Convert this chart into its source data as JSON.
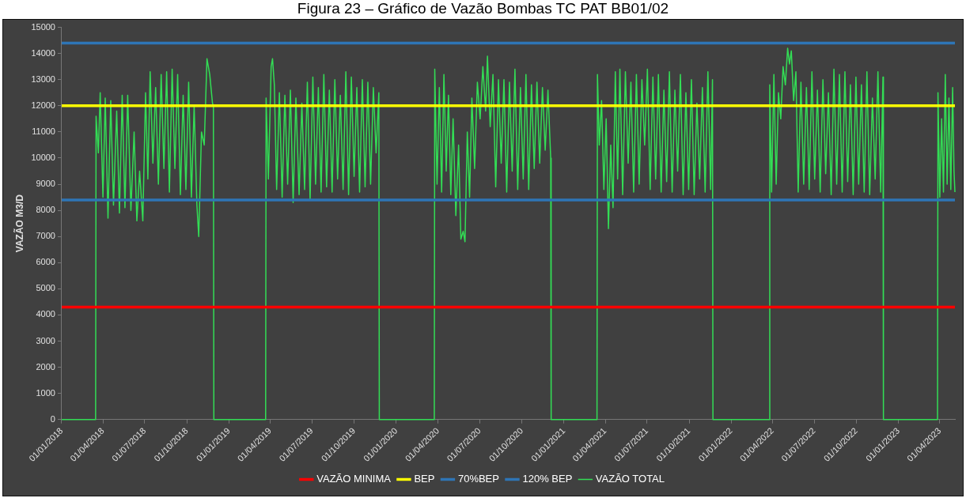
{
  "chart_data": {
    "type": "line",
    "title": "Figura 23 – Gráfico de Vazão Bombas TC PAT BB01/02",
    "ylabel": "VAZÃO M3/D",
    "xlim": [
      "2018-01-01",
      "2023-05-04"
    ],
    "xticks": [
      {
        "value": "2018-01-01",
        "label": "01/01/2018"
      },
      {
        "value": "2018-04-01",
        "label": "01/04/2018"
      },
      {
        "value": "2018-07-01",
        "label": "01/07/2018"
      },
      {
        "value": "2018-10-01",
        "label": "01/10/2018"
      },
      {
        "value": "2019-01-01",
        "label": "01/01/2019"
      },
      {
        "value": "2019-04-01",
        "label": "01/04/2019"
      },
      {
        "value": "2019-07-01",
        "label": "01/07/2019"
      },
      {
        "value": "2019-10-01",
        "label": "01/10/2019"
      },
      {
        "value": "2020-01-01",
        "label": "01/01/2020"
      },
      {
        "value": "2020-04-01",
        "label": "01/04/2020"
      },
      {
        "value": "2020-07-01",
        "label": "01/07/2020"
      },
      {
        "value": "2020-10-01",
        "label": "01/10/2020"
      },
      {
        "value": "2021-01-01",
        "label": "01/01/2021"
      },
      {
        "value": "2021-04-01",
        "label": "01/04/2021"
      },
      {
        "value": "2021-07-01",
        "label": "01/07/2021"
      },
      {
        "value": "2021-10-01",
        "label": "01/10/2021"
      },
      {
        "value": "2022-01-01",
        "label": "01/01/2022"
      },
      {
        "value": "2022-04-01",
        "label": "01/04/2022"
      },
      {
        "value": "2022-07-01",
        "label": "01/07/2022"
      },
      {
        "value": "2022-10-01",
        "label": "01/10/2022"
      },
      {
        "value": "2023-01-01",
        "label": "01/01/2023"
      },
      {
        "value": "2023-04-01",
        "label": "01/04/2023"
      }
    ],
    "ylim": [
      0,
      15000
    ],
    "yticks": [
      0,
      1000,
      2000,
      3000,
      4000,
      5000,
      6000,
      7000,
      8000,
      9000,
      10000,
      11000,
      12000,
      13000,
      14000,
      15000
    ],
    "legend": "bottom",
    "marker": "none",
    "line_style": "solid",
    "ref_lines": [
      {
        "axis": "y",
        "value": 4300,
        "label": "VAZÃO MINIMA",
        "color": "#ff0000"
      },
      {
        "axis": "y",
        "value": 12000,
        "label": "BEP",
        "color": "#ffff00"
      },
      {
        "axis": "y",
        "value": 8400,
        "label": "70%BEP",
        "color": "#2e75b6"
      },
      {
        "axis": "y",
        "value": 14400,
        "label": "120% BEP",
        "color": "#2e75b6"
      }
    ],
    "series": [
      {
        "name": "VAZÃO TOTAL",
        "color": "#33dd55",
        "x": [
          "2018-01-01",
          "2018-03-16",
          "2018-03-17",
          "2018-03-22",
          "2018-03-26",
          "2018-04-01",
          "2018-04-06",
          "2018-04-12",
          "2018-04-18",
          "2018-04-24",
          "2018-05-01",
          "2018-05-07",
          "2018-05-13",
          "2018-05-19",
          "2018-05-25",
          "2018-06-01",
          "2018-06-08",
          "2018-06-14",
          "2018-06-20",
          "2018-06-27",
          "2018-07-03",
          "2018-07-08",
          "2018-07-13",
          "2018-07-19",
          "2018-07-25",
          "2018-07-31",
          "2018-08-06",
          "2018-08-12",
          "2018-08-18",
          "2018-08-24",
          "2018-08-30",
          "2018-09-05",
          "2018-09-11",
          "2018-09-17",
          "2018-09-23",
          "2018-09-29",
          "2018-10-05",
          "2018-10-11",
          "2018-10-17",
          "2018-10-23",
          "2018-10-27",
          "2018-11-02",
          "2018-11-08",
          "2018-11-14",
          "2018-11-20",
          "2018-11-26",
          "2018-11-28",
          "2018-11-29",
          "2019-03-22",
          "2019-03-23",
          "2019-03-28",
          "2019-04-03",
          "2019-04-06",
          "2019-04-10",
          "2019-04-15",
          "2019-04-21",
          "2019-04-27",
          "2019-05-03",
          "2019-05-09",
          "2019-05-15",
          "2019-05-21",
          "2019-05-27",
          "2019-06-03",
          "2019-06-09",
          "2019-06-15",
          "2019-06-21",
          "2019-06-27",
          "2019-07-03",
          "2019-07-09",
          "2019-07-15",
          "2019-07-21",
          "2019-07-27",
          "2019-08-02",
          "2019-08-08",
          "2019-08-14",
          "2019-08-20",
          "2019-08-26",
          "2019-09-01",
          "2019-09-07",
          "2019-09-13",
          "2019-09-19",
          "2019-09-25",
          "2019-10-01",
          "2019-10-07",
          "2019-10-13",
          "2019-10-19",
          "2019-10-25",
          "2019-10-31",
          "2019-11-06",
          "2019-11-12",
          "2019-11-18",
          "2019-11-24",
          "2019-11-25",
          "2020-03-24",
          "2020-03-25",
          "2020-03-30",
          "2020-04-04",
          "2020-04-09",
          "2020-04-14",
          "2020-04-19",
          "2020-04-24",
          "2020-04-29",
          "2020-05-04",
          "2020-05-10",
          "2020-05-16",
          "2020-05-21",
          "2020-05-26",
          "2020-05-30",
          "2020-06-04",
          "2020-06-09",
          "2020-06-14",
          "2020-06-20",
          "2020-06-26",
          "2020-07-02",
          "2020-07-08",
          "2020-07-14",
          "2020-07-18",
          "2020-07-24",
          "2020-07-30",
          "2020-08-05",
          "2020-08-11",
          "2020-08-17",
          "2020-08-23",
          "2020-08-29",
          "2020-09-04",
          "2020-09-10",
          "2020-09-16",
          "2020-09-22",
          "2020-09-28",
          "2020-10-04",
          "2020-10-10",
          "2020-10-16",
          "2020-10-22",
          "2020-10-28",
          "2020-11-03",
          "2020-11-09",
          "2020-11-15",
          "2020-11-21",
          "2020-11-27",
          "2020-12-03",
          "2020-12-04",
          "2021-03-14",
          "2021-03-15",
          "2021-03-19",
          "2021-03-24",
          "2021-03-29",
          "2021-04-03",
          "2021-04-08",
          "2021-04-13",
          "2021-04-18",
          "2021-04-23",
          "2021-04-28",
          "2021-05-03",
          "2021-05-09",
          "2021-05-15",
          "2021-05-21",
          "2021-05-27",
          "2021-06-02",
          "2021-06-08",
          "2021-06-14",
          "2021-06-20",
          "2021-06-26",
          "2021-07-02",
          "2021-07-08",
          "2021-07-14",
          "2021-07-20",
          "2021-07-26",
          "2021-08-01",
          "2021-08-07",
          "2021-08-13",
          "2021-08-19",
          "2021-08-25",
          "2021-08-31",
          "2021-09-06",
          "2021-09-12",
          "2021-09-18",
          "2021-09-24",
          "2021-09-30",
          "2021-10-06",
          "2021-10-12",
          "2021-10-18",
          "2021-10-24",
          "2021-10-30",
          "2021-11-05",
          "2021-11-11",
          "2021-11-17",
          "2021-11-21",
          "2021-11-22",
          "2022-03-25",
          "2022-03-26",
          "2022-03-30",
          "2022-04-04",
          "2022-04-09",
          "2022-04-14",
          "2022-04-19",
          "2022-04-24",
          "2022-04-29",
          "2022-05-04",
          "2022-05-08",
          "2022-05-12",
          "2022-05-17",
          "2022-05-22",
          "2022-05-27",
          "2022-06-02",
          "2022-06-08",
          "2022-06-14",
          "2022-06-20",
          "2022-06-26",
          "2022-07-02",
          "2022-07-08",
          "2022-07-14",
          "2022-07-20",
          "2022-07-26",
          "2022-08-01",
          "2022-08-07",
          "2022-08-13",
          "2022-08-19",
          "2022-08-25",
          "2022-08-31",
          "2022-09-06",
          "2022-09-12",
          "2022-09-18",
          "2022-09-24",
          "2022-09-30",
          "2022-10-06",
          "2022-10-12",
          "2022-10-18",
          "2022-10-24",
          "2022-10-30",
          "2022-11-05",
          "2022-11-11",
          "2022-11-17",
          "2022-11-23",
          "2022-11-28",
          "2022-11-29",
          "2023-03-27",
          "2023-03-28",
          "2023-04-01",
          "2023-04-05",
          "2023-04-09",
          "2023-04-13",
          "2023-04-17",
          "2023-04-21",
          "2023-04-25",
          "2023-04-29",
          "2023-05-02",
          "2023-05-04"
        ],
        "values": [
          0,
          0,
          11600,
          10200,
          12500,
          8500,
          12300,
          7700,
          12200,
          8200,
          11800,
          7900,
          12400,
          8100,
          12400,
          8000,
          11000,
          7600,
          9500,
          7600,
          12500,
          9200,
          13300,
          9800,
          12700,
          9000,
          13200,
          9600,
          13300,
          8700,
          13400,
          9600,
          13200,
          8600,
          12400,
          8800,
          12900,
          8500,
          12000,
          8200,
          7000,
          11000,
          10500,
          13800,
          13200,
          12100,
          12000,
          0,
          0,
          12300,
          9200,
          13500,
          13800,
          12800,
          8800,
          12500,
          8500,
          12400,
          9000,
          12600,
          8300,
          12300,
          8600,
          12100,
          8800,
          12900,
          8400,
          13100,
          9000,
          12700,
          8700,
          13200,
          8900,
          12600,
          8700,
          13000,
          9200,
          12400,
          8800,
          13300,
          8600,
          13100,
          9300,
          12700,
          8700,
          13000,
          8900,
          12900,
          9000,
          12700,
          10200,
          12500,
          0,
          0,
          13400,
          9000,
          12700,
          8700,
          13200,
          9500,
          12400,
          8600,
          11500,
          7800,
          10500,
          6900,
          7200,
          6800,
          11000,
          8500,
          12300,
          9600,
          12900,
          11500,
          13500,
          11800,
          13900,
          11200,
          13200,
          8900,
          13000,
          9800,
          13000,
          8700,
          12900,
          9500,
          13400,
          8800,
          12700,
          9200,
          13200,
          8800,
          12800,
          9600,
          12900,
          9800,
          12700,
          10300,
          12600,
          10000,
          0,
          0,
          13200,
          10500,
          12200,
          8800,
          11500,
          7300,
          10500,
          8100,
          13300,
          9200,
          13400,
          8600,
          13300,
          9800,
          12900,
          8700,
          13200,
          9000,
          13000,
          10500,
          13400,
          8800,
          13100,
          9200,
          13200,
          8700,
          12600,
          9100,
          13300,
          8700,
          12600,
          9500,
          13200,
          8600,
          12500,
          8800,
          13000,
          8600,
          12100,
          9200,
          12700,
          8700,
          13300,
          8800,
          13000,
          0,
          0,
          12800,
          8700,
          13200,
          9000,
          12500,
          11500,
          13500,
          12800,
          14200,
          13600,
          14100,
          12200,
          13300,
          8700,
          12900,
          9000,
          12700,
          8800,
          13300,
          9200,
          12600,
          8700,
          13000,
          9400,
          12500,
          8600,
          13400,
          9000,
          13200,
          8700,
          13300,
          9100,
          12800,
          8600,
          13100,
          9000,
          12800,
          8700,
          13300,
          8600,
          12300,
          9200,
          13300,
          8700,
          13100,
          0,
          0,
          12500,
          8500,
          11500,
          8700,
          13200,
          9000,
          12300,
          8800,
          12700,
          9500,
          8700
        ]
      }
    ]
  }
}
